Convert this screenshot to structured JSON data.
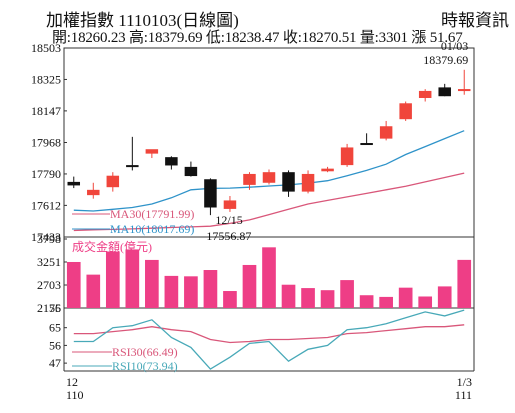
{
  "header": {
    "title": "加權指數 1110103(日線圖)",
    "source": "時報資訊",
    "ohlc_line": "開:18260.23 高:18379.69 低:18238.47 收:18270.51 量:3301 漲 51.67"
  },
  "colors": {
    "up": "#f0453b",
    "down": "#111111",
    "ma30": "#d9577a",
    "ma10": "#2f93c9",
    "volume": "#ee3e86",
    "rsi30": "#d9577a",
    "rsi10": "#48a9b8",
    "axis": "#333333"
  },
  "chart_data": [
    {
      "type": "candlestick",
      "name": "price",
      "ylim": [
        17433,
        18503
      ],
      "yticks": [
        "18503",
        "18325",
        "18147",
        "17968",
        "17790",
        "17612",
        "17433"
      ],
      "candles": [
        {
          "o": 17745,
          "h": 17775,
          "l": 17710,
          "c": 17725
        },
        {
          "o": 17670,
          "h": 17740,
          "l": 17650,
          "c": 17700
        },
        {
          "o": 17715,
          "h": 17800,
          "l": 17690,
          "c": 17780
        },
        {
          "o": 17840,
          "h": 18000,
          "l": 17810,
          "c": 17835
        },
        {
          "o": 17905,
          "h": 17925,
          "l": 17880,
          "c": 17930
        },
        {
          "o": 17885,
          "h": 17890,
          "l": 17815,
          "c": 17838
        },
        {
          "o": 17830,
          "h": 17860,
          "l": 17775,
          "c": 17778
        },
        {
          "o": 17760,
          "h": 17765,
          "l": 17556.87,
          "c": 17600
        },
        {
          "o": 17592,
          "h": 17665,
          "l": 17575,
          "c": 17640
        },
        {
          "o": 17728,
          "h": 17800,
          "l": 17700,
          "c": 17790
        },
        {
          "o": 17740,
          "h": 17815,
          "l": 17730,
          "c": 17800
        },
        {
          "o": 17800,
          "h": 17810,
          "l": 17660,
          "c": 17690
        },
        {
          "o": 17690,
          "h": 17810,
          "l": 17680,
          "c": 17790
        },
        {
          "o": 17805,
          "h": 17830,
          "l": 17800,
          "c": 17820
        },
        {
          "o": 17840,
          "h": 17960,
          "l": 17830,
          "c": 17940
        },
        {
          "o": 17965,
          "h": 18020,
          "l": 17955,
          "c": 17960
        },
        {
          "o": 17990,
          "h": 18090,
          "l": 17980,
          "c": 18060
        },
        {
          "o": 18100,
          "h": 18200,
          "l": 18090,
          "c": 18190
        },
        {
          "o": 18220,
          "h": 18270,
          "l": 18200,
          "c": 18260
        },
        {
          "o": 18280,
          "h": 18300,
          "l": 18230,
          "c": 18230
        },
        {
          "o": 18260.23,
          "h": 18379.69,
          "l": 18238.47,
          "c": 18270.51
        }
      ],
      "ma10": [
        17585,
        17580,
        17590,
        17600,
        17620,
        17655,
        17700,
        17708,
        17710,
        17715,
        17722,
        17728,
        17738,
        17752,
        17780,
        17810,
        17845,
        17900,
        17945,
        17990,
        18035
      ],
      "ma30": [
        17470,
        17473,
        17476,
        17479,
        17483,
        17487,
        17490,
        17494,
        17510,
        17530,
        17560,
        17590,
        17620,
        17640,
        17660,
        17680,
        17700,
        17720,
        17745,
        17770,
        17795
      ],
      "legend": [
        {
          "label": "MA30(17791.99)",
          "color": "#d9577a"
        },
        {
          "label": "MA10(18017.69)",
          "color": "#2f93c9"
        }
      ],
      "annotations": [
        {
          "index": 20,
          "date": "01/03",
          "value": "18379.69"
        },
        {
          "index": 7,
          "date": "12/15",
          "value": "17556.87"
        }
      ]
    },
    {
      "type": "bar",
      "name": "volume",
      "title": "成交金額(億元)",
      "ylim": [
        2156,
        3798
      ],
      "yticks": [
        "3798",
        "3251",
        "2703",
        "2156"
      ],
      "values": [
        3251,
        2950,
        3500,
        3550,
        3300,
        2920,
        2910,
        3060,
        2560,
        3180,
        3600,
        2710,
        2630,
        2580,
        2820,
        2460,
        2420,
        2640,
        2430,
        2670,
        3301
      ]
    },
    {
      "type": "line",
      "name": "rsi",
      "ylim": [
        43,
        75
      ],
      "yticks": [
        "75",
        "65",
        "56",
        "47"
      ],
      "series": [
        {
          "name": "RSI30(66.49)",
          "color": "#d9577a",
          "values": [
            62,
            62,
            63,
            64,
            65.5,
            64,
            63,
            59,
            57.5,
            58,
            59,
            59,
            59.5,
            60,
            62,
            62.5,
            63.5,
            64.5,
            65.5,
            65.5,
            66.49
          ]
        },
        {
          "name": "RSI10(73.94)",
          "color": "#48a9b8",
          "values": [
            58,
            58,
            65,
            66,
            69,
            60,
            55,
            44,
            50,
            57,
            58,
            48,
            54,
            56,
            64,
            65,
            67,
            70,
            73,
            71,
            73.94
          ]
        }
      ]
    }
  ],
  "x_axis": {
    "left_top": "12",
    "left_bottom": "110",
    "right_top": "1/3",
    "right_bottom": "111"
  }
}
